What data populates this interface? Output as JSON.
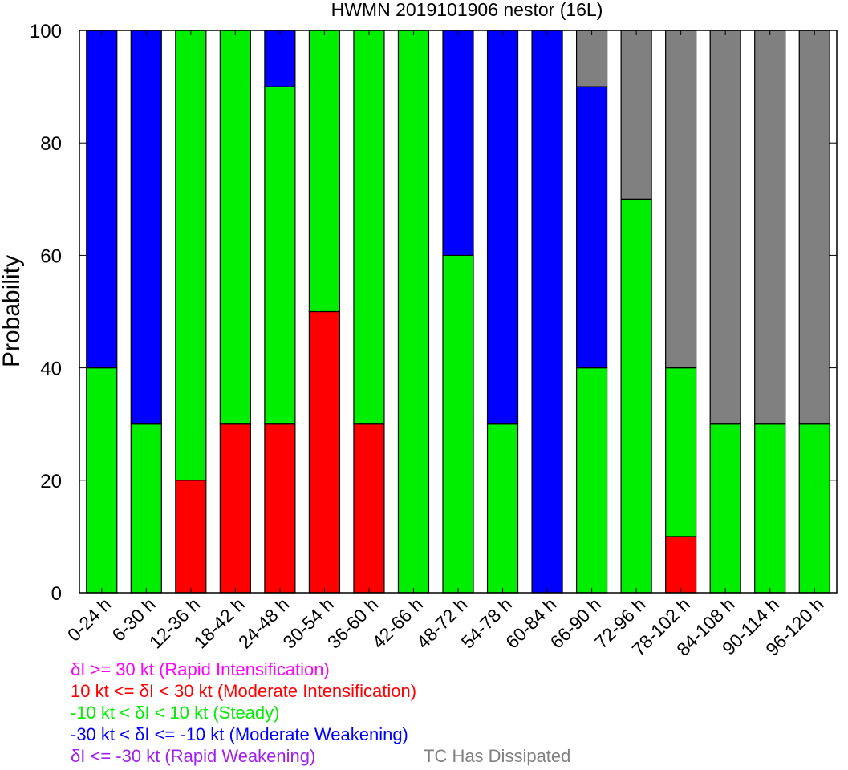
{
  "chart_data": {
    "type": "bar",
    "stacked": true,
    "title": "HWMN 2019101906 nestor (16L)",
    "xlabel": "",
    "ylabel": "Probability",
    "ylim": [
      0,
      100
    ],
    "yticks": [
      "0",
      "20",
      "40",
      "60",
      "80",
      "100"
    ],
    "grid": false,
    "categories": [
      "0-24 h",
      "6-30 h",
      "12-36 h",
      "18-42 h",
      "24-48 h",
      "30-54 h",
      "36-60 h",
      "42-66 h",
      "48-72 h",
      "54-78 h",
      "60-84 h",
      "66-90 h",
      "72-96 h",
      "78-102 h",
      "84-108 h",
      "90-114 h",
      "96-120 h"
    ],
    "series": [
      {
        "name": "Rapid Intensification",
        "color": "#ff00ff",
        "values": [
          0,
          0,
          0,
          0,
          0,
          0,
          0,
          0,
          0,
          0,
          0,
          0,
          0,
          0,
          0,
          0,
          0
        ]
      },
      {
        "name": "Moderate Intensification",
        "color": "#ff0000",
        "values": [
          0,
          0,
          20,
          30,
          30,
          50,
          30,
          0,
          0,
          0,
          0,
          0,
          0,
          10,
          0,
          0,
          0
        ]
      },
      {
        "name": "Steady",
        "color": "#00ee00",
        "values": [
          40,
          30,
          80,
          70,
          60,
          50,
          70,
          100,
          60,
          30,
          0,
          40,
          70,
          30,
          30,
          30,
          30
        ]
      },
      {
        "name": "Moderate Weakening",
        "color": "#0000ff",
        "values": [
          60,
          70,
          0,
          0,
          10,
          0,
          0,
          0,
          40,
          70,
          100,
          50,
          0,
          0,
          0,
          0,
          0
        ]
      },
      {
        "name": "Rapid Weakening",
        "color": "#a020f0",
        "values": [
          0,
          0,
          0,
          0,
          0,
          0,
          0,
          0,
          0,
          0,
          0,
          0,
          0,
          0,
          0,
          0,
          0
        ]
      },
      {
        "name": "TC Has Dissipated",
        "color": "#808080",
        "values": [
          0,
          0,
          0,
          0,
          0,
          0,
          0,
          0,
          0,
          0,
          0,
          10,
          30,
          60,
          70,
          70,
          70
        ]
      }
    ],
    "legend": {
      "placement": "bottom-left",
      "entries": [
        {
          "text": "δI >= 30 kt (Rapid Intensification)",
          "color": "#ff00ff"
        },
        {
          "text": "10 kt <= δI < 30 kt (Moderate Intensification)",
          "color": "#ff0000"
        },
        {
          "text": "-10 kt < δI < 10 kt (Steady)",
          "color": "#00ee00"
        },
        {
          "text": "-30 kt < δI <= -10 kt (Moderate Weakening)",
          "color": "#0000ff"
        },
        {
          "text": "δI <= -30 kt (Rapid Weakening)",
          "color": "#a020f0"
        },
        {
          "text": "TC Has Dissipated",
          "color": "#808080"
        }
      ]
    }
  }
}
